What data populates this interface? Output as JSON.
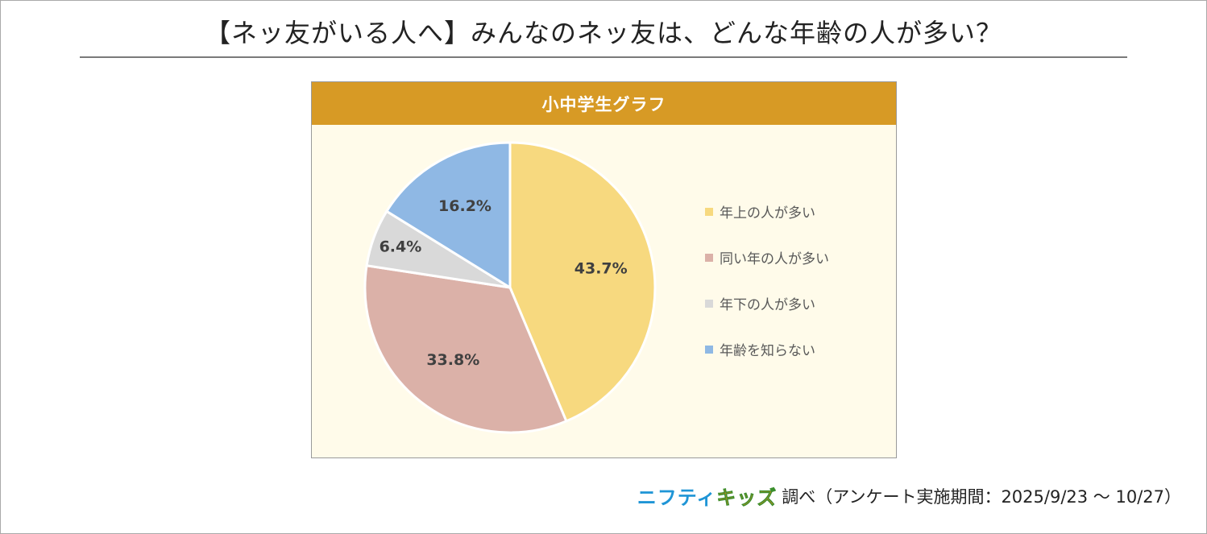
{
  "page": {
    "title": "【ネッ友がいる人へ】みんなのネッ友は、どんな年齢の人が多い？",
    "footer": {
      "brand_part1": "ニフティ",
      "brand_part2": "キッズ",
      "note": "調べ（アンケート実施期間：2025/9/23 ～ 10/27）"
    }
  },
  "colors": {
    "header_bg": "#d79a25",
    "plot_bg": "#fffbea",
    "slice_borders": "#ffffff"
  },
  "chart_data": {
    "type": "pie",
    "title": "小中学生グラフ",
    "start_angle_deg": 0,
    "direction": "clockwise",
    "slices": [
      {
        "label": "年上の人が多い",
        "value": 43.7,
        "value_label": "43.7%",
        "color": "#f7d97f"
      },
      {
        "label": "同い年の人が多い",
        "value": 33.8,
        "value_label": "33.8%",
        "color": "#dbb1a8"
      },
      {
        "label": "年下の人が多い",
        "value": 6.4,
        "value_label": "6.4%",
        "color": "#d9d9d9"
      },
      {
        "label": "年齢を知らない",
        "value": 16.2,
        "value_label": "16.2%",
        "color": "#8fb8e4"
      }
    ],
    "legend": {
      "position": "right"
    }
  }
}
